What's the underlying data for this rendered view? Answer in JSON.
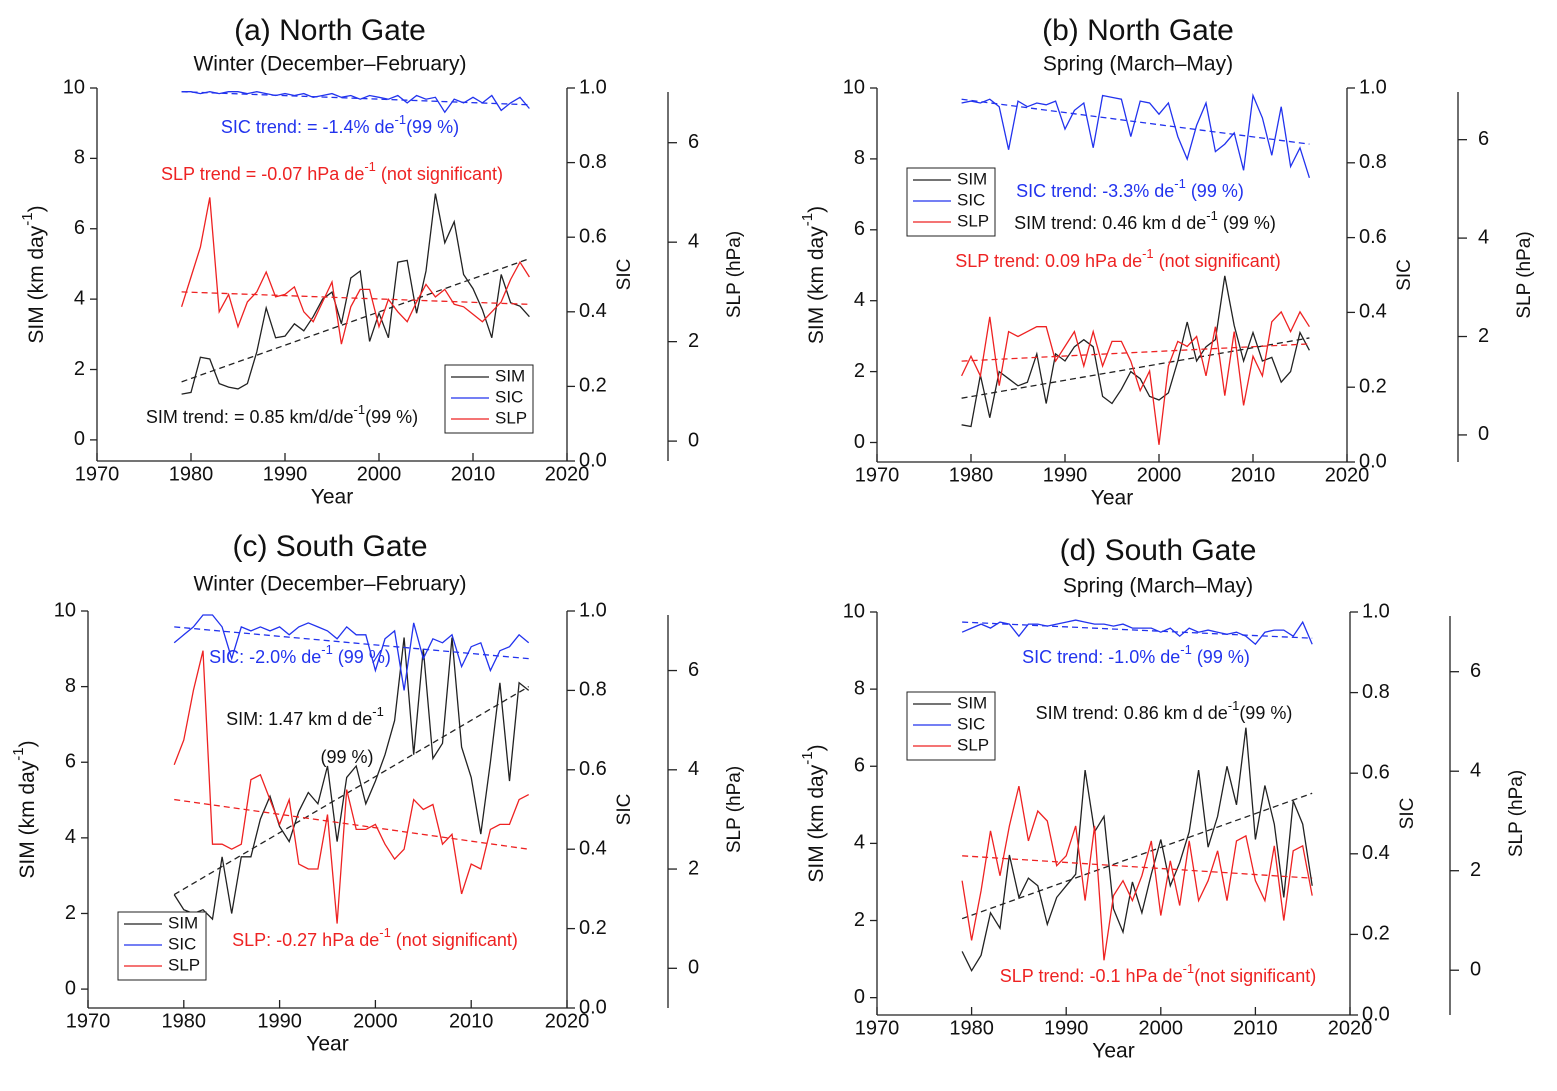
{
  "chart_data": [
    {
      "type": "line",
      "title": "(a) North Gate",
      "subtitle": "Winter (December–February)",
      "xlabel": "Year",
      "ylabel": {
        "text": "SIM (km day",
        "sup": "-1",
        "after": ")"
      },
      "y2label": "SIC",
      "y3label": "SLP (hPa)",
      "x": [
        1979,
        1980,
        1981,
        1982,
        1983,
        1984,
        1985,
        1986,
        1987,
        1988,
        1989,
        1990,
        1991,
        1992,
        1993,
        1994,
        1995,
        1996,
        1997,
        1998,
        1999,
        2000,
        2001,
        2002,
        2003,
        2004,
        2005,
        2006,
        2007,
        2008,
        2009,
        2010,
        2011,
        2012,
        2013,
        2014,
        2015,
        2016
      ],
      "xlim": [
        1970,
        2020
      ],
      "xticks": [
        1970,
        1980,
        1990,
        2000,
        2010,
        2020
      ],
      "ylim": [
        -0.6,
        10
      ],
      "yticks": [
        0,
        2,
        4,
        6,
        8,
        10
      ],
      "y2lim": [
        0,
        1
      ],
      "y2ticks": [
        {
          "value": 0,
          "label": "0.0"
        },
        0.2,
        0.4,
        0.6,
        0.8,
        {
          "value": 1,
          "label": "1.0"
        }
      ],
      "y3lim": [
        -0.4,
        7.1
      ],
      "y3ticks": [
        0,
        2,
        4,
        6
      ],
      "legend": "lower right",
      "series": [
        {
          "name": "SIM",
          "color": "#222222",
          "values": [
            1.3,
            1.35,
            2.35,
            2.3,
            1.6,
            1.5,
            1.45,
            1.6,
            2.5,
            3.75,
            2.9,
            2.95,
            3.3,
            3.1,
            3.5,
            4.0,
            4.2,
            3.3,
            4.6,
            4.8,
            2.8,
            3.6,
            2.9,
            5.05,
            5.1,
            3.6,
            4.8,
            7.0,
            5.6,
            6.2,
            4.7,
            4.3,
            3.7,
            2.9,
            4.7,
            3.9,
            3.8,
            3.5
          ],
          "trend": [
            1.65,
            5.15
          ]
        },
        {
          "name": "SIC",
          "color": "#2233ee",
          "axis": "y2",
          "values": [
            0.99,
            0.99,
            0.985,
            0.99,
            0.985,
            0.99,
            0.99,
            0.985,
            0.99,
            0.985,
            0.98,
            0.985,
            0.98,
            0.985,
            0.975,
            0.98,
            0.985,
            0.975,
            0.98,
            0.97,
            0.98,
            0.975,
            0.97,
            0.98,
            0.96,
            0.98,
            0.97,
            0.975,
            0.935,
            0.97,
            0.96,
            0.975,
            0.96,
            0.98,
            0.94,
            0.96,
            0.975,
            0.945
          ],
          "trend": [
            0.99,
            0.955
          ]
        },
        {
          "name": "SLP",
          "color": "#ee2222",
          "axis": "y3",
          "values": [
            2.7,
            3.3,
            3.9,
            4.9,
            2.6,
            2.95,
            2.3,
            2.8,
            3.0,
            3.4,
            2.9,
            2.95,
            3.1,
            2.6,
            2.4,
            2.8,
            3.2,
            1.95,
            2.7,
            3.05,
            3.05,
            2.3,
            2.85,
            2.6,
            2.4,
            2.8,
            3.15,
            2.9,
            3.05,
            2.75,
            2.7,
            2.55,
            2.4,
            2.6,
            2.8,
            3.25,
            3.6,
            3.3
          ],
          "trend": [
            3.0,
            2.75
          ]
        }
      ],
      "annotations": [
        {
          "text": "SIC trend: = -1.4% de",
          "sup": "-1",
          "after": "(99 %)",
          "color": "#2233ee"
        },
        {
          "text": "SLP trend = -0.07 hPa de",
          "sup": "-1",
          "after": " (not significant)",
          "color": "#ee2222"
        },
        {
          "text": "SIM trend: = 0.85 km/d/de",
          "sup": "-1",
          "after": "(99 %)",
          "color": "#111111"
        }
      ]
    },
    {
      "type": "line",
      "title": "(b) North Gate",
      "subtitle": "Spring (March–May)",
      "xlabel": "Year",
      "ylabel": {
        "text": "SIM (km day",
        "sup": "-1",
        "after": ")"
      },
      "y2label": "SIC",
      "y3label": "SLP (hPa)",
      "x": [
        1979,
        1980,
        1981,
        1982,
        1983,
        1984,
        1985,
        1986,
        1987,
        1988,
        1989,
        1990,
        1991,
        1992,
        1993,
        1994,
        1995,
        1996,
        1997,
        1998,
        1999,
        2000,
        2001,
        2002,
        2003,
        2004,
        2005,
        2006,
        2007,
        2008,
        2009,
        2010,
        2011,
        2012,
        2013,
        2014,
        2015,
        2016
      ],
      "xlim": [
        1970,
        2020
      ],
      "xticks": [
        1970,
        1980,
        1990,
        2000,
        2010,
        2020
      ],
      "ylim": [
        -0.55,
        10
      ],
      "yticks": [
        0,
        2,
        4,
        6,
        8,
        10
      ],
      "y2lim": [
        0,
        1
      ],
      "y2ticks": [
        {
          "value": 0,
          "label": "0.0"
        },
        0.2,
        0.4,
        0.6,
        0.8,
        {
          "value": 1,
          "label": "1.0"
        }
      ],
      "y3lim": [
        -0.55,
        7.05
      ],
      "y3ticks": [
        0,
        2,
        4,
        6
      ],
      "legend": "upper left",
      "series": [
        {
          "name": "SIM",
          "color": "#222222",
          "values": [
            0.5,
            0.45,
            1.9,
            0.7,
            2.0,
            1.8,
            1.6,
            1.7,
            2.5,
            1.1,
            2.5,
            2.3,
            2.7,
            2.9,
            2.7,
            1.3,
            1.1,
            1.5,
            2.0,
            1.8,
            1.3,
            1.2,
            1.4,
            2.3,
            3.4,
            2.3,
            2.7,
            2.9,
            4.7,
            3.3,
            2.3,
            3.1,
            2.3,
            2.4,
            1.7,
            2.0,
            3.1,
            2.6
          ],
          "trend": [
            1.25,
            2.95
          ]
        },
        {
          "name": "SIC",
          "color": "#2233ee",
          "axis": "y2",
          "values": [
            0.96,
            0.965,
            0.96,
            0.97,
            0.95,
            0.835,
            0.965,
            0.95,
            0.96,
            0.955,
            0.965,
            0.89,
            0.94,
            0.96,
            0.84,
            0.98,
            0.975,
            0.97,
            0.87,
            0.965,
            0.96,
            0.93,
            0.96,
            0.87,
            0.81,
            0.9,
            0.96,
            0.83,
            0.85,
            0.88,
            0.78,
            0.98,
            0.92,
            0.82,
            0.95,
            0.79,
            0.84,
            0.76
          ],
          "trend": [
            0.97,
            0.85
          ]
        },
        {
          "name": "SLP",
          "color": "#ee2222",
          "axis": "y3",
          "values": [
            1.2,
            1.6,
            1.2,
            2.4,
            1.0,
            2.1,
            2.0,
            2.1,
            2.2,
            2.2,
            1.5,
            1.8,
            2.1,
            1.4,
            2.1,
            1.4,
            1.9,
            1.9,
            1.5,
            0.9,
            1.3,
            -0.2,
            1.4,
            1.9,
            1.8,
            2.0,
            1.2,
            2.2,
            0.8,
            2.1,
            0.6,
            1.6,
            1.2,
            2.3,
            2.5,
            2.1,
            2.5,
            2.2
          ],
          "trend": [
            1.5,
            1.85
          ]
        }
      ],
      "annotations": [
        {
          "text": "SIC trend: -3.3% de",
          "sup": "-1",
          "after": " (99 %)",
          "color": "#2233ee"
        },
        {
          "text": "SIM trend: 0.46 km d de",
          "sup": "-1",
          "after": " (99 %)",
          "color": "#111111"
        },
        {
          "text": "SLP trend: 0.09 hPa de",
          "sup": "-1",
          "after": " (not significant)",
          "color": "#ee2222"
        }
      ]
    },
    {
      "type": "line",
      "title": "(c) South Gate",
      "subtitle": "Winter (December–February)",
      "xlabel": "Year",
      "ylabel": {
        "text": "SIM (km day",
        "sup": "-1",
        "after": ")"
      },
      "y2label": "SIC",
      "y3label": "SLP (hPa)",
      "x": [
        1979,
        1980,
        1981,
        1982,
        1983,
        1984,
        1985,
        1986,
        1987,
        1988,
        1989,
        1990,
        1991,
        1992,
        1993,
        1994,
        1995,
        1996,
        1997,
        1998,
        1999,
        2000,
        2001,
        2002,
        2003,
        2004,
        2005,
        2006,
        2007,
        2008,
        2009,
        2010,
        2011,
        2012,
        2013,
        2014,
        2015,
        2016
      ],
      "xlim": [
        1970,
        2020
      ],
      "xticks": [
        1970,
        1980,
        1990,
        2000,
        2010,
        2020
      ],
      "ylim": [
        -0.5,
        10
      ],
      "yticks": [
        0,
        2,
        4,
        6,
        8,
        10
      ],
      "y2lim": [
        0,
        1
      ],
      "y2ticks": [
        {
          "value": 0,
          "label": "0.0"
        },
        0.2,
        0.4,
        0.6,
        0.8,
        {
          "value": 1,
          "label": "1.0"
        }
      ],
      "y3lim": [
        -0.8,
        7.2
      ],
      "y3ticks": [
        0,
        2,
        4,
        6
      ],
      "legend": "lower left",
      "series": [
        {
          "name": "SIM",
          "color": "#222222",
          "values": [
            2.5,
            2.1,
            2.0,
            2.1,
            1.85,
            3.5,
            2.0,
            3.5,
            3.5,
            4.5,
            5.1,
            4.3,
            3.9,
            4.7,
            5.2,
            4.9,
            5.9,
            3.9,
            5.6,
            5.9,
            4.9,
            5.5,
            6.2,
            7.1,
            9.3,
            6.2,
            9.0,
            6.1,
            6.5,
            9.3,
            6.4,
            5.6,
            4.1,
            6.0,
            8.1,
            5.5,
            8.1,
            7.9
          ],
          "trend": [
            2.5,
            8.0
          ]
        },
        {
          "name": "SIC",
          "color": "#2233ee",
          "axis": "y2",
          "values": [
            0.92,
            0.94,
            0.96,
            0.99,
            0.99,
            0.96,
            0.88,
            0.96,
            0.95,
            0.96,
            0.95,
            0.96,
            0.94,
            0.96,
            0.97,
            0.96,
            0.95,
            0.93,
            0.96,
            0.94,
            0.94,
            0.85,
            0.93,
            0.95,
            0.8,
            0.97,
            0.88,
            0.93,
            0.92,
            0.94,
            0.86,
            0.91,
            0.92,
            0.85,
            0.9,
            0.91,
            0.94,
            0.92
          ],
          "trend": [
            0.96,
            0.88
          ]
        },
        {
          "name": "SLP",
          "color": "#ee2222",
          "axis": "y3",
          "values": [
            4.1,
            4.6,
            5.6,
            6.4,
            2.5,
            2.5,
            2.4,
            2.5,
            3.8,
            3.9,
            3.4,
            2.9,
            3.4,
            2.1,
            2.0,
            2.0,
            3.1,
            0.9,
            3.6,
            2.8,
            2.8,
            2.9,
            2.5,
            2.2,
            2.4,
            3.4,
            3.2,
            3.3,
            2.5,
            2.7,
            1.5,
            2.1,
            2.0,
            2.8,
            2.9,
            2.9,
            3.4,
            3.5
          ],
          "trend": [
            3.4,
            2.4
          ]
        }
      ],
      "annotations": [
        {
          "text": "SIC: -2.0% de",
          "sup": "-1",
          "after": " (99 %)",
          "color": "#2233ee"
        },
        {
          "text": "SIM: 1.47 km d de",
          "sup": "-1",
          "color": "#111111"
        },
        {
          "text": "(99 %)",
          "color": "#111111"
        },
        {
          "text": "SLP: -0.27 hPa de",
          "sup": "-1",
          "after": " (not significant)",
          "color": "#ee2222"
        }
      ]
    },
    {
      "type": "line",
      "title": "(d) South Gate",
      "subtitle": "Spring (March–May)",
      "xlabel": "Year",
      "ylabel": {
        "text": "SIM (km day",
        "sup": "-1",
        "after": ")"
      },
      "y2label": "SIC",
      "y3label": "SLP (hPa)",
      "x": [
        1979,
        1980,
        1981,
        1982,
        1983,
        1984,
        1985,
        1986,
        1987,
        1988,
        1989,
        1990,
        1991,
        1992,
        1993,
        1994,
        1995,
        1996,
        1997,
        1998,
        1999,
        2000,
        2001,
        2002,
        2003,
        2004,
        2005,
        2006,
        2007,
        2008,
        2009,
        2010,
        2011,
        2012,
        2013,
        2014,
        2015,
        2016
      ],
      "xlim": [
        1970,
        2020
      ],
      "xticks": [
        1970,
        1980,
        1990,
        2000,
        2010,
        2020
      ],
      "ylim": [
        -0.45,
        10
      ],
      "yticks": [
        0,
        2,
        4,
        6,
        8,
        10
      ],
      "y2lim": [
        0,
        1
      ],
      "y2ticks": [
        {
          "value": 0,
          "label": "0.0"
        },
        0.2,
        0.4,
        0.6,
        0.8,
        {
          "value": 1,
          "label": "1.0"
        }
      ],
      "y3lim": [
        -0.9,
        7.2
      ],
      "y3ticks": [
        0,
        2,
        4,
        6
      ],
      "legend": "upper left",
      "series": [
        {
          "name": "SIM",
          "color": "#222222",
          "values": [
            1.2,
            0.7,
            1.1,
            2.2,
            1.8,
            3.7,
            2.6,
            3.1,
            2.9,
            1.9,
            2.6,
            2.9,
            3.2,
            5.9,
            4.3,
            4.7,
            2.3,
            1.7,
            3.0,
            2.2,
            3.2,
            4.1,
            2.9,
            3.5,
            4.3,
            5.9,
            3.9,
            4.7,
            6.0,
            5.0,
            7.0,
            4.1,
            5.5,
            4.5,
            2.6,
            5.1,
            4.5,
            2.9
          ],
          "trend": [
            2.05,
            5.3
          ]
        },
        {
          "name": "SIC",
          "color": "#2233ee",
          "axis": "y2",
          "values": [
            0.95,
            0.96,
            0.97,
            0.96,
            0.975,
            0.97,
            0.94,
            0.97,
            0.97,
            0.965,
            0.97,
            0.975,
            0.98,
            0.975,
            0.97,
            0.97,
            0.965,
            0.97,
            0.96,
            0.96,
            0.96,
            0.95,
            0.96,
            0.94,
            0.96,
            0.95,
            0.955,
            0.95,
            0.945,
            0.95,
            0.94,
            0.92,
            0.95,
            0.955,
            0.955,
            0.94,
            0.975,
            0.92
          ],
          "trend": [
            0.975,
            0.935
          ]
        },
        {
          "name": "SLP",
          "color": "#ee2222",
          "axis": "y3",
          "values": [
            1.8,
            0.6,
            1.6,
            2.8,
            1.9,
            2.9,
            3.7,
            2.6,
            3.2,
            3.0,
            2.1,
            2.3,
            2.9,
            1.4,
            2.9,
            0.2,
            1.5,
            1.8,
            1.4,
            1.9,
            2.6,
            1.1,
            2.2,
            1.3,
            2.6,
            1.4,
            1.8,
            2.4,
            1.4,
            2.6,
            2.7,
            1.8,
            1.4,
            2.5,
            1.0,
            2.4,
            2.5,
            1.5
          ],
          "trend": [
            2.3,
            1.85
          ]
        }
      ],
      "annotations": [
        {
          "text": "SIC trend: -1.0% de",
          "sup": "-1",
          "after": "  (99 %)",
          "color": "#2233ee"
        },
        {
          "text": "SIM trend: 0.86 km d de",
          "sup": "-1",
          "after": "(99 %)",
          "color": "#111111"
        },
        {
          "text": "SLP trend: -0.1 hPa de",
          "sup": "-1",
          "after": "(not significant)",
          "color": "#ee2222"
        }
      ]
    }
  ]
}
